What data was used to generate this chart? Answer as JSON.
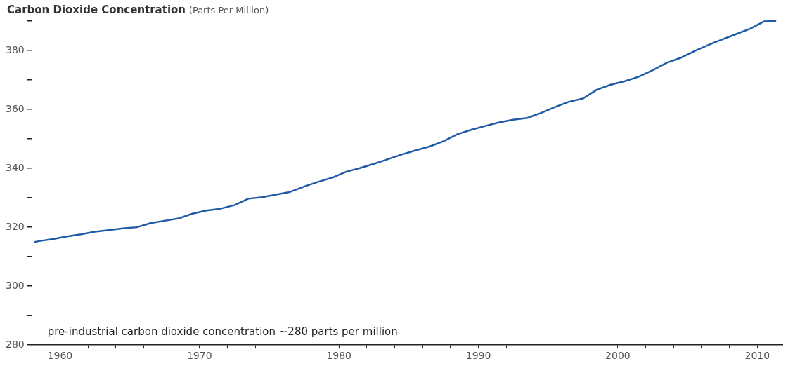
{
  "chart_data": {
    "type": "line",
    "title": "Carbon Dioxide Concentration",
    "subtitle": "(Parts Per Million)",
    "x": [
      1958.2,
      1958.5,
      1959.5,
      1960.5,
      1961.5,
      1962.5,
      1963.5,
      1964.5,
      1965.5,
      1966.5,
      1967.5,
      1968.5,
      1969.5,
      1970.5,
      1971.5,
      1972.5,
      1973.5,
      1974.5,
      1975.5,
      1976.5,
      1977.5,
      1978.5,
      1979.5,
      1980.5,
      1981.5,
      1982.5,
      1983.5,
      1984.5,
      1985.5,
      1986.5,
      1987.5,
      1988.5,
      1989.5,
      1990.5,
      1991.5,
      1992.5,
      1993.5,
      1994.5,
      1995.5,
      1996.5,
      1997.5,
      1998.5,
      1999.5,
      2000.5,
      2001.5,
      2002.5,
      2003.5,
      2004.5,
      2005.5,
      2006.5,
      2007.5,
      2008.5,
      2009.5,
      2010.5,
      2011.3
    ],
    "series": [
      {
        "color": "#1f5aa6",
        "values": [
          315.0,
          315.3,
          316.0,
          316.9,
          317.6,
          318.5,
          319.0,
          319.6,
          320.0,
          321.4,
          322.2,
          323.0,
          324.6,
          325.7,
          326.3,
          327.5,
          329.7,
          330.2,
          331.1,
          332.0,
          333.8,
          335.4,
          336.8,
          338.8,
          340.1,
          341.5,
          343.1,
          344.7,
          346.1,
          347.4,
          349.2,
          351.6,
          353.1,
          354.4,
          355.6,
          356.5,
          357.1,
          358.8,
          360.8,
          362.6,
          363.7,
          366.7,
          368.4,
          369.6,
          371.1,
          373.3,
          375.8,
          377.5,
          379.8,
          381.9,
          383.8,
          385.6,
          387.4,
          389.9,
          390.0
        ]
      }
    ],
    "xlim": [
      1958,
      2011.8
    ],
    "xticks": [
      1960,
      {
        "value": 1962,
        "label": null
      },
      {
        "value": 1964,
        "label": null
      },
      {
        "value": 1966,
        "label": null
      },
      {
        "value": 1968,
        "label": null
      },
      1970,
      {
        "value": 1972,
        "label": null
      },
      {
        "value": 1974,
        "label": null
      },
      {
        "value": 1976,
        "label": null
      },
      {
        "value": 1978,
        "label": null
      },
      1980,
      {
        "value": 1982,
        "label": null
      },
      {
        "value": 1984,
        "label": null
      },
      {
        "value": 1986,
        "label": null
      },
      {
        "value": 1988,
        "label": null
      },
      1990,
      {
        "value": 1992,
        "label": null
      },
      {
        "value": 1994,
        "label": null
      },
      {
        "value": 1996,
        "label": null
      },
      {
        "value": 1998,
        "label": null
      },
      2000,
      {
        "value": 2002,
        "label": null
      },
      {
        "value": 2004,
        "label": null
      },
      {
        "value": 2006,
        "label": null
      },
      {
        "value": 2008,
        "label": null
      },
      2010
    ],
    "ylim": [
      280,
      390
    ],
    "yticks": [
      280,
      {
        "value": 290,
        "label": null
      },
      300,
      {
        "value": 310,
        "label": null
      },
      320,
      {
        "value": 330,
        "label": null
      },
      340,
      {
        "value": 350,
        "label": null
      },
      360,
      {
        "value": 370,
        "label": null
      },
      380,
      {
        "value": 390,
        "label": null
      }
    ],
    "annotations": [
      "pre-industrial carbon dioxide concentration ~280 parts per million"
    ],
    "grid": false,
    "legend": false,
    "marker": "none",
    "line_style": "solid"
  }
}
